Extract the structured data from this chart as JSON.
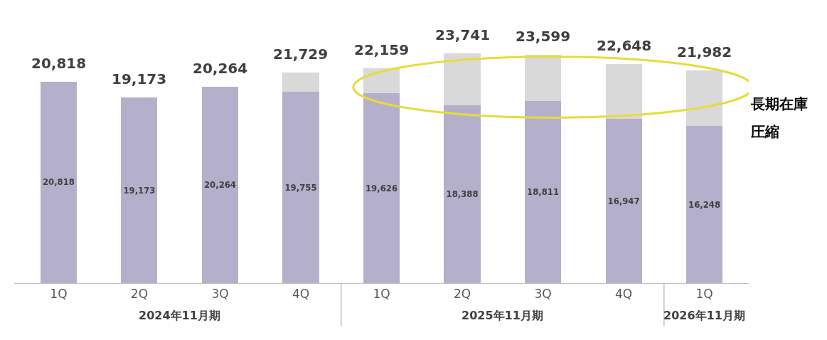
{
  "chart_data": {
    "type": "bar",
    "stacked": true,
    "categories": [
      "1Q",
      "2Q",
      "3Q",
      "4Q",
      "1Q",
      "2Q",
      "3Q",
      "4Q",
      "1Q"
    ],
    "series": [
      {
        "color": "#b4b0cb",
        "values": [
          20818,
          19173,
          20264,
          19755,
          19626,
          18388,
          18811,
          16947,
          16248
        ],
        "value_labels": [
          "20,818",
          "19,173",
          "20,264",
          "19,755",
          "19,626",
          "18,388",
          "18,811",
          "16,947",
          "16,248"
        ]
      },
      {
        "color": "#d9d9d9",
        "values": [
          0,
          0,
          0,
          1974,
          2533,
          5353,
          4788,
          5701,
          5734
        ]
      }
    ],
    "totals": [
      "20,818",
      "19,173",
      "20,264",
      "21,729",
      "22,159",
      "23,741",
      "23,599",
      "22,648",
      "21,982"
    ],
    "annotations": [
      "2024年11月期",
      "2025年11月期",
      "2026年11月期",
      "長期在庫",
      "圧縮"
    ]
  }
}
